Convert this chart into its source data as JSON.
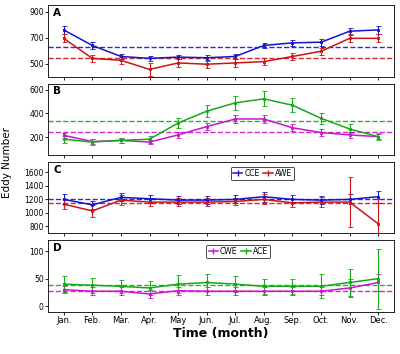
{
  "months": [
    "Jan.",
    "Feb.",
    "Mar.",
    "Apr.",
    "May",
    "Jun.",
    "Jul.",
    "Aug.",
    "Sep.",
    "Oct.",
    "Nov.",
    "Dec."
  ],
  "panel_A": {
    "CCE_mean": [
      760,
      640,
      555,
      540,
      550,
      545,
      555,
      640,
      660,
      665,
      750,
      760
    ],
    "CCE_err": [
      28,
      25,
      22,
      20,
      18,
      18,
      18,
      22,
      22,
      28,
      28,
      28
    ],
    "AWE_mean": [
      695,
      540,
      525,
      455,
      505,
      495,
      505,
      515,
      555,
      595,
      695,
      695
    ],
    "AWE_err": [
      32,
      28,
      28,
      50,
      28,
      28,
      28,
      28,
      28,
      28,
      32,
      32
    ],
    "CCE_mean_line": 628,
    "AWE_mean_line": 542,
    "ylim": [
      400,
      950
    ],
    "yticks": [
      500,
      700,
      900
    ]
  },
  "panel_B": {
    "CWE_mean": [
      215,
      162,
      172,
      158,
      218,
      288,
      352,
      352,
      278,
      238,
      218,
      203
    ],
    "CWE_err": [
      22,
      18,
      18,
      18,
      28,
      32,
      32,
      32,
      28,
      28,
      28,
      22
    ],
    "ACE_mean": [
      182,
      158,
      172,
      182,
      318,
      418,
      488,
      522,
      468,
      358,
      268,
      203
    ],
    "ACE_err": [
      28,
      22,
      22,
      28,
      42,
      52,
      58,
      62,
      58,
      48,
      38,
      28
    ],
    "CWE_mean_line": 242,
    "ACE_mean_line": 332,
    "ylim": [
      50,
      650
    ],
    "yticks": [
      200,
      400,
      600
    ]
  },
  "panel_C": {
    "CCE_mean": [
      1198,
      1118,
      1228,
      1208,
      1188,
      1188,
      1198,
      1238,
      1198,
      1188,
      1198,
      1238
    ],
    "CCE_err": [
      75,
      58,
      58,
      58,
      58,
      58,
      58,
      75,
      58,
      58,
      75,
      88
    ],
    "AWE_mean": [
      1128,
      1028,
      1188,
      1158,
      1158,
      1158,
      1168,
      1198,
      1148,
      1158,
      1158,
      838
    ],
    "AWE_err": [
      75,
      88,
      75,
      58,
      58,
      58,
      58,
      75,
      58,
      75,
      370,
      370
    ],
    "CCE_mean_line": 1198,
    "AWE_mean_line": 1152,
    "ylim": [
      700,
      1750
    ],
    "yticks": [
      800,
      1000,
      1200,
      1400,
      1600
    ]
  },
  "panel_D": {
    "CWE_mean": [
      30,
      27,
      27,
      22,
      28,
      27,
      27,
      27,
      27,
      27,
      33,
      43
    ],
    "CWE_err": [
      7,
      7,
      7,
      7,
      7,
      7,
      7,
      7,
      7,
      7,
      16,
      16
    ],
    "ACE_mean": [
      40,
      38,
      36,
      33,
      40,
      43,
      40,
      36,
      36,
      36,
      43,
      50
    ],
    "ACE_err": [
      14,
      14,
      12,
      12,
      16,
      16,
      14,
      14,
      14,
      22,
      25,
      55
    ],
    "CWE_mean_line": 28,
    "ACE_mean_line": 38,
    "ylim": [
      -10,
      120
    ],
    "yticks": [
      0,
      50,
      100
    ]
  },
  "colors": {
    "CCE": "#1414CC",
    "AWE": "#CC1414",
    "CWE": "#CC14CC",
    "ACE": "#14AA14"
  },
  "background": "#ffffff",
  "ylabel": "Eddy Number",
  "xlabel": "Time (month)"
}
